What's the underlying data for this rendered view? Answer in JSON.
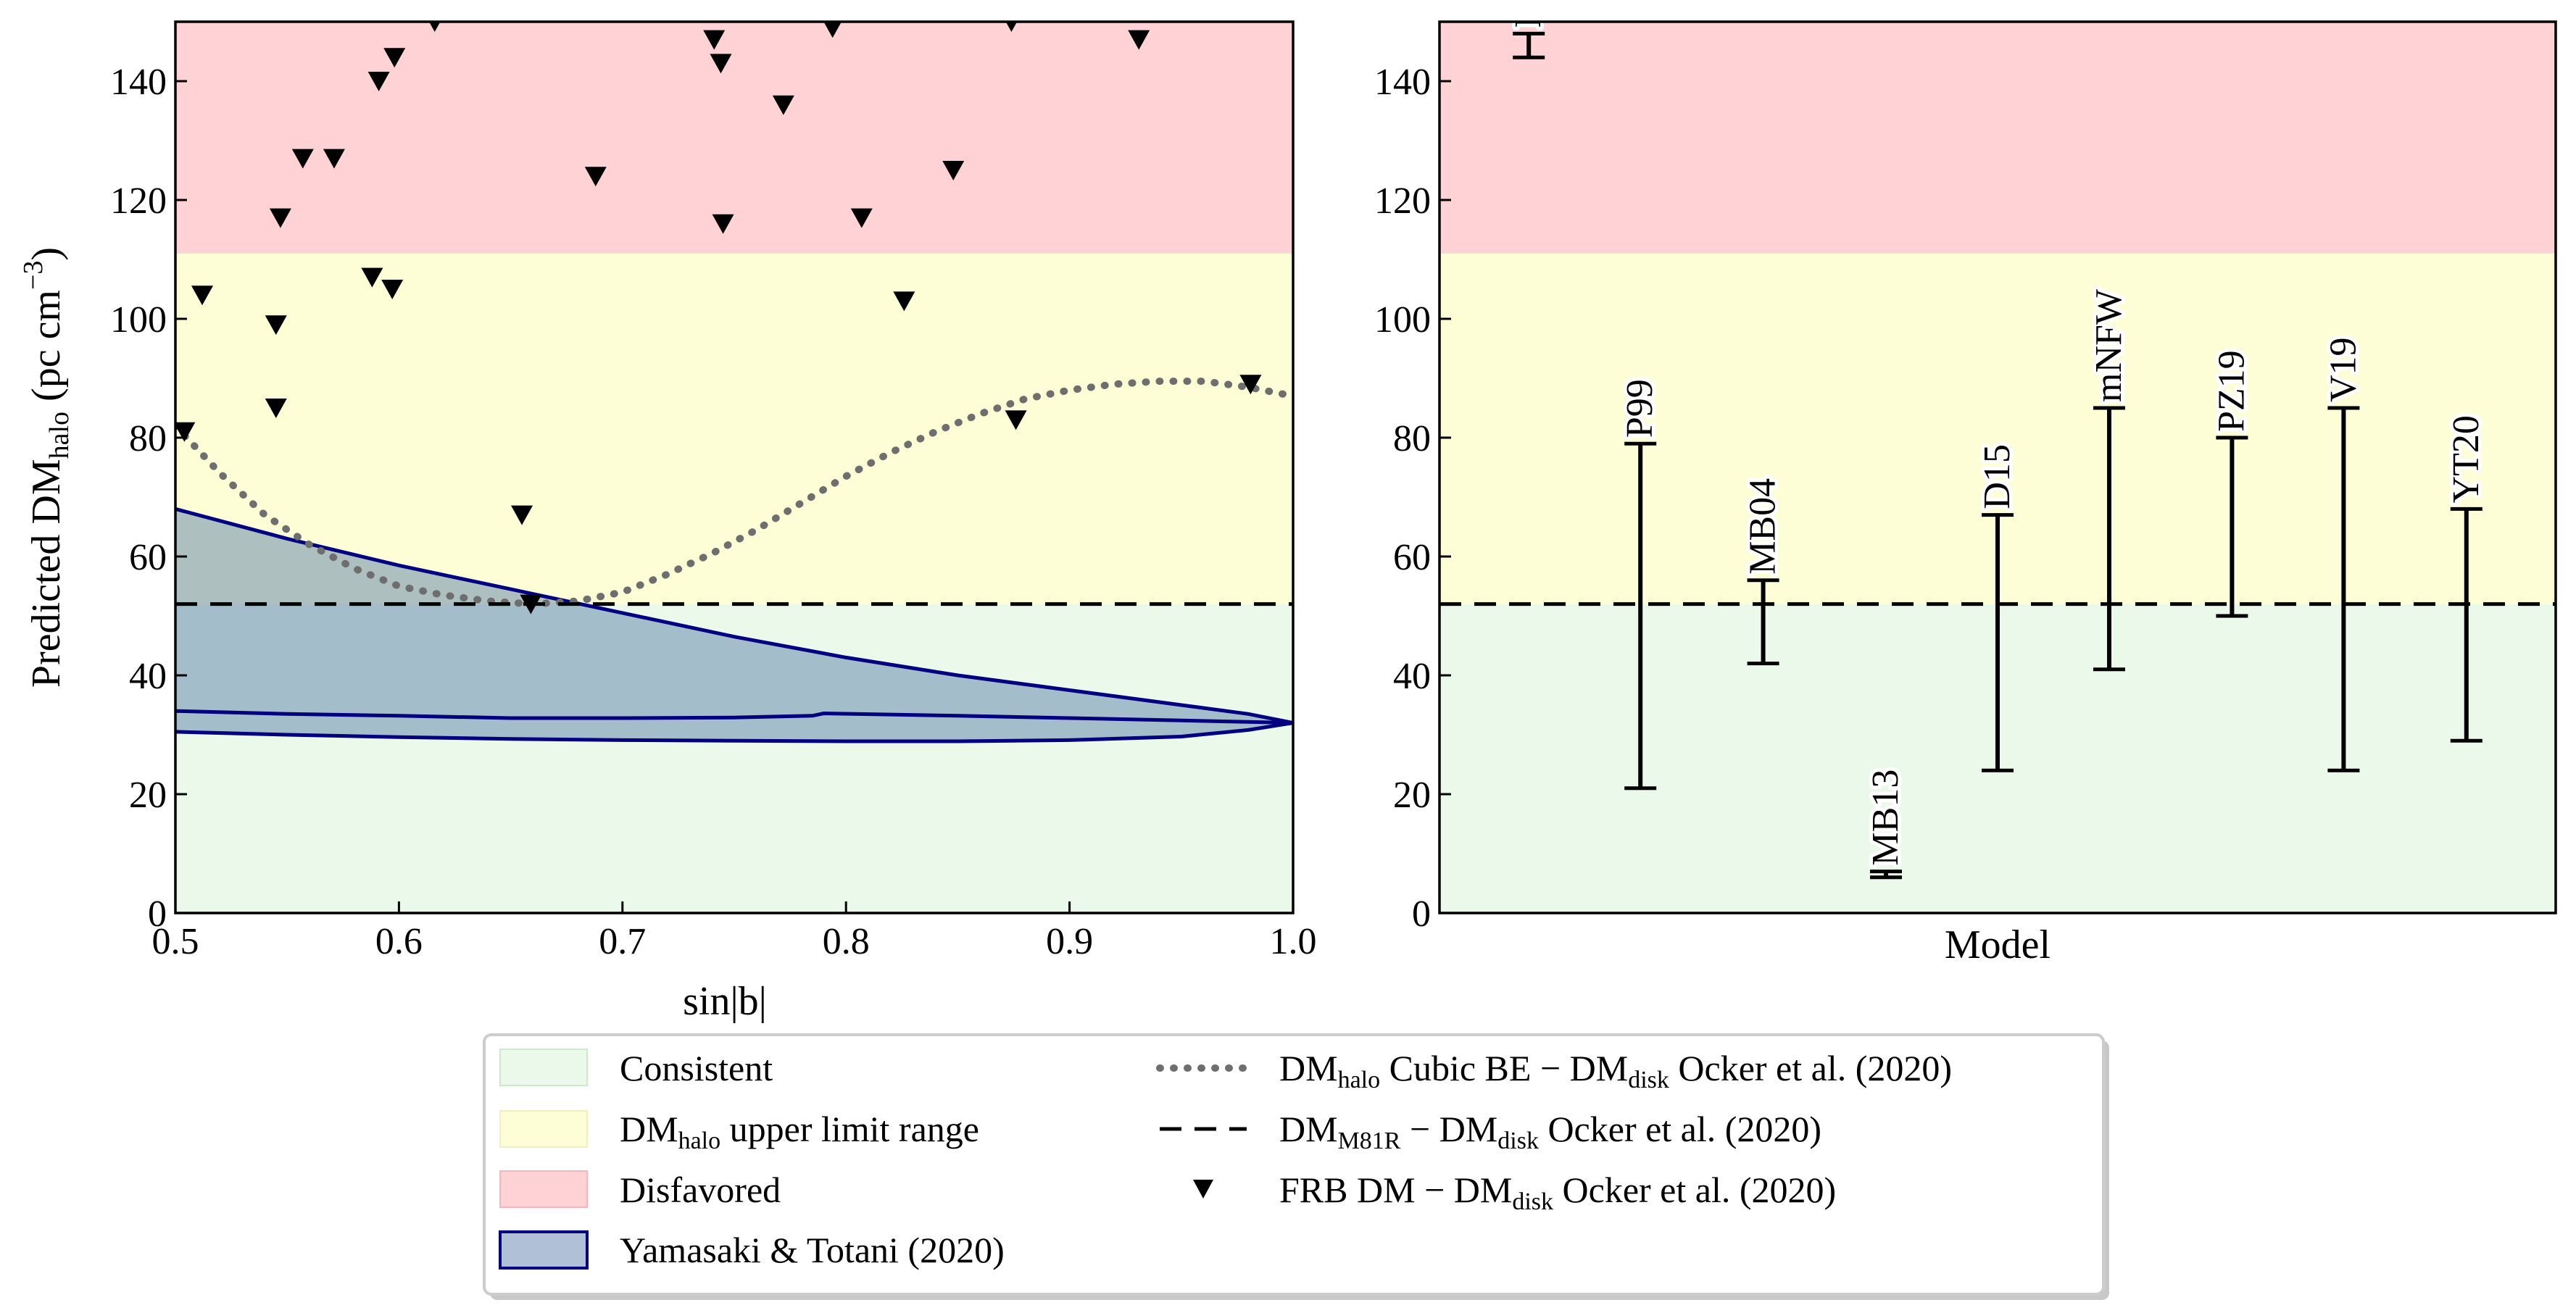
{
  "figure": {
    "regions": {
      "consistent": {
        "from": 0,
        "to": 52,
        "color": "#eaf9ea",
        "label": "Consistent"
      },
      "upper_limit": {
        "from": 52,
        "to": 111,
        "color": "#fdfdd6",
        "label_main": "DM",
        "label_sub": "halo",
        "label_rest": " upper limit range"
      },
      "disfavored": {
        "from": 111,
        "to": 150,
        "color": "#ffd3d6",
        "label": "Disfavored"
      }
    },
    "colors": {
      "band_fill": "#4d73a6",
      "band_edge": "#000080",
      "dotted": "#6e6e6e",
      "dashed": "#000000",
      "markers": "#000000"
    },
    "legend": {
      "yt_label": "Yamasaki & Totani (2020)",
      "cubic": {
        "pre": "DM",
        "pre_sub": "halo",
        "mid": " Cubic BE − DM",
        "mid_sub": "disk",
        "post": " Ocker et al. (2020)"
      },
      "m81r": {
        "pre": "DM",
        "pre_sub": "M81R",
        "mid": " − DM",
        "mid_sub": "disk",
        "post": " Ocker et al. (2020)"
      },
      "frb": {
        "pre": "FRB DM −  DM",
        "pre_sub": "disk",
        "post": " Ocker et al. (2020)"
      }
    }
  },
  "chart_data": [
    {
      "type": "scatter",
      "title": "",
      "xlabel": "sin|b|",
      "ylabel_main": "Predicted DM",
      "ylabel_sub": "halo",
      "ylabel_units": " (pc cm",
      "ylabel_exp": "−3",
      "ylabel_close": ")",
      "xlim": [
        0.5,
        1.0
      ],
      "ylim": [
        0,
        150
      ],
      "xticks": [
        "0.5",
        "0.6",
        "0.7",
        "0.8",
        "0.9",
        "1.0"
      ],
      "yticks": [
        "0",
        "20",
        "40",
        "60",
        "80",
        "100",
        "120",
        "140"
      ],
      "m81r_value": 52,
      "frb_points": [
        {
          "x": 0.504,
          "y": 81
        },
        {
          "x": 0.512,
          "y": 104
        },
        {
          "x": 0.545,
          "y": 99
        },
        {
          "x": 0.545,
          "y": 85
        },
        {
          "x": 0.547,
          "y": 117
        },
        {
          "x": 0.557,
          "y": 127
        },
        {
          "x": 0.571,
          "y": 127
        },
        {
          "x": 0.588,
          "y": 107
        },
        {
          "x": 0.591,
          "y": 140
        },
        {
          "x": 0.597,
          "y": 105
        },
        {
          "x": 0.598,
          "y": 144
        },
        {
          "x": 0.616,
          "y": 150
        },
        {
          "x": 0.655,
          "y": 67
        },
        {
          "x": 0.659,
          "y": 52
        },
        {
          "x": 0.688,
          "y": 124
        },
        {
          "x": 0.741,
          "y": 147
        },
        {
          "x": 0.744,
          "y": 143
        },
        {
          "x": 0.745,
          "y": 116
        },
        {
          "x": 0.772,
          "y": 136
        },
        {
          "x": 0.794,
          "y": 149
        },
        {
          "x": 0.807,
          "y": 117
        },
        {
          "x": 0.826,
          "y": 103
        },
        {
          "x": 0.848,
          "y": 125
        },
        {
          "x": 0.874,
          "y": 150
        },
        {
          "x": 0.876,
          "y": 83
        },
        {
          "x": 0.931,
          "y": 147
        },
        {
          "x": 0.981,
          "y": 89
        }
      ],
      "cubic_be_curve": [
        {
          "x": 0.5,
          "y": 82
        },
        {
          "x": 0.52,
          "y": 74
        },
        {
          "x": 0.54,
          "y": 67
        },
        {
          "x": 0.56,
          "y": 62
        },
        {
          "x": 0.58,
          "y": 58
        },
        {
          "x": 0.6,
          "y": 55
        },
        {
          "x": 0.62,
          "y": 53.5
        },
        {
          "x": 0.64,
          "y": 52.5
        },
        {
          "x": 0.66,
          "y": 52
        },
        {
          "x": 0.68,
          "y": 52.5
        },
        {
          "x": 0.7,
          "y": 54
        },
        {
          "x": 0.72,
          "y": 57
        },
        {
          "x": 0.74,
          "y": 60.5
        },
        {
          "x": 0.76,
          "y": 64.5
        },
        {
          "x": 0.78,
          "y": 69
        },
        {
          "x": 0.8,
          "y": 73.5
        },
        {
          "x": 0.82,
          "y": 77.5
        },
        {
          "x": 0.84,
          "y": 81
        },
        {
          "x": 0.86,
          "y": 84
        },
        {
          "x": 0.88,
          "y": 86.5
        },
        {
          "x": 0.9,
          "y": 88
        },
        {
          "x": 0.92,
          "y": 89
        },
        {
          "x": 0.94,
          "y": 89.5
        },
        {
          "x": 0.96,
          "y": 89.5
        },
        {
          "x": 0.98,
          "y": 88.5
        },
        {
          "x": 1.0,
          "y": 87
        }
      ],
      "yt_band": {
        "upper": [
          {
            "x": 0.5,
            "y": 68
          },
          {
            "x": 0.55,
            "y": 63
          },
          {
            "x": 0.6,
            "y": 58.5
          },
          {
            "x": 0.65,
            "y": 54.5
          },
          {
            "x": 0.7,
            "y": 50.5
          },
          {
            "x": 0.75,
            "y": 46.5
          },
          {
            "x": 0.8,
            "y": 43
          },
          {
            "x": 0.85,
            "y": 40
          },
          {
            "x": 0.9,
            "y": 37.5
          },
          {
            "x": 0.95,
            "y": 35
          },
          {
            "x": 0.98,
            "y": 33.5
          },
          {
            "x": 1.0,
            "y": 32
          }
        ],
        "median": [
          {
            "x": 0.5,
            "y": 34
          },
          {
            "x": 0.55,
            "y": 33.5
          },
          {
            "x": 0.6,
            "y": 33.2
          },
          {
            "x": 0.65,
            "y": 32.8
          },
          {
            "x": 0.7,
            "y": 32.8
          },
          {
            "x": 0.75,
            "y": 32.9
          },
          {
            "x": 0.785,
            "y": 33.2
          },
          {
            "x": 0.79,
            "y": 33.6
          },
          {
            "x": 0.85,
            "y": 33.2
          },
          {
            "x": 0.9,
            "y": 32.8
          },
          {
            "x": 0.95,
            "y": 32.4
          },
          {
            "x": 1.0,
            "y": 32
          }
        ],
        "lower": [
          {
            "x": 0.5,
            "y": 30.5
          },
          {
            "x": 0.55,
            "y": 30
          },
          {
            "x": 0.6,
            "y": 29.6
          },
          {
            "x": 0.65,
            "y": 29.3
          },
          {
            "x": 0.7,
            "y": 29.1
          },
          {
            "x": 0.75,
            "y": 29
          },
          {
            "x": 0.8,
            "y": 28.9
          },
          {
            "x": 0.85,
            "y": 28.9
          },
          {
            "x": 0.9,
            "y": 29.1
          },
          {
            "x": 0.95,
            "y": 29.7
          },
          {
            "x": 0.98,
            "y": 30.8
          },
          {
            "x": 1.0,
            "y": 32
          }
        ]
      }
    },
    {
      "type": "errorbar",
      "title": "",
      "xlabel": "Model",
      "ylim": [
        0,
        150
      ],
      "yticks": [
        "0",
        "20",
        "40",
        "60",
        "80",
        "100",
        "120",
        "140"
      ],
      "m81r_value": 52,
      "models": [
        {
          "name": "NFW",
          "low": 144,
          "high": 148,
          "index": 0.08
        },
        {
          "name": "P99",
          "low": 21,
          "high": 79,
          "index": 0.18
        },
        {
          "name": "MB04",
          "low": 42,
          "high": 56,
          "index": 0.29
        },
        {
          "name": "MB13",
          "low": 6,
          "high": 7,
          "index": 0.4
        },
        {
          "name": "D15",
          "low": 24,
          "high": 67,
          "index": 0.5
        },
        {
          "name": "mNFW",
          "low": 41,
          "high": 85,
          "index": 0.6
        },
        {
          "name": "PZ19",
          "low": 50,
          "high": 80,
          "index": 0.71
        },
        {
          "name": "V19",
          "low": 24,
          "high": 85,
          "index": 0.81
        },
        {
          "name": "YT20",
          "low": 29,
          "high": 68,
          "index": 0.92
        }
      ]
    }
  ]
}
